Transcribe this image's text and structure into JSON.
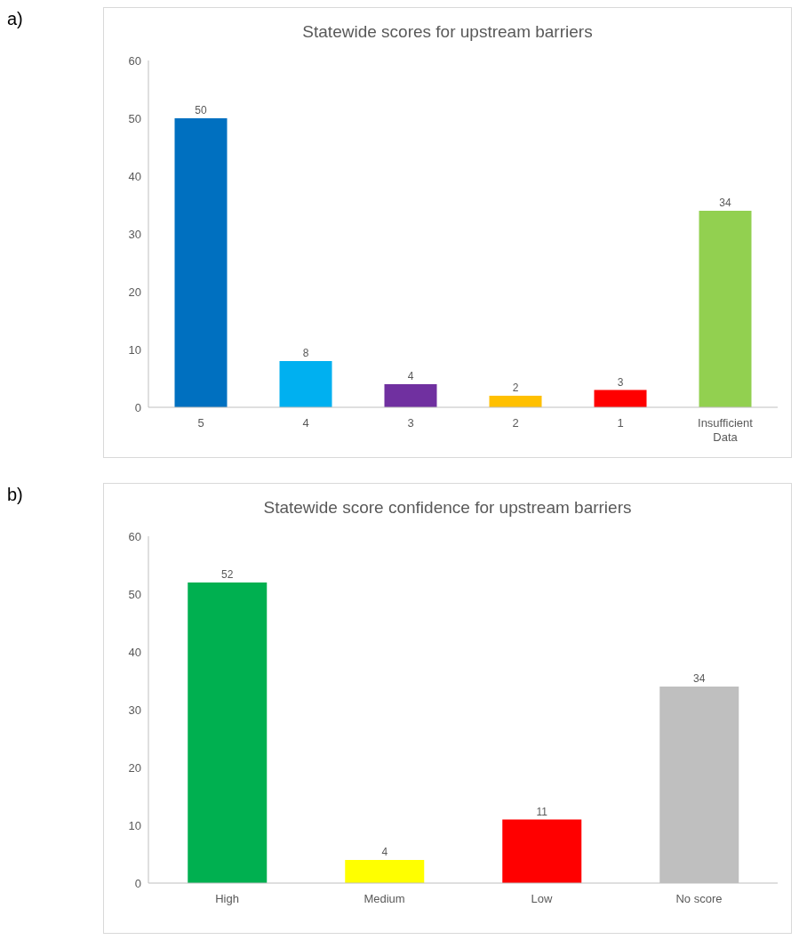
{
  "chart_data": [
    {
      "type": "bar",
      "title": "Statewide scores for upstream barriers",
      "annotations": [
        "a)"
      ],
      "categories": [
        "5",
        "4",
        "3",
        "2",
        "1",
        "Insufficient Data"
      ],
      "values": [
        50,
        8,
        4,
        2,
        3,
        34
      ],
      "colors": [
        "#0070c0",
        "#00b0f0",
        "#7030a0",
        "#ffc000",
        "#ff0000",
        "#92d050"
      ],
      "ylim": [
        0,
        60
      ],
      "yticks": [
        0,
        10,
        20,
        30,
        40,
        50,
        60
      ],
      "grid": false,
      "legend": false,
      "data_labels": true
    },
    {
      "type": "bar",
      "title": "Statewide score confidence for upstream barriers",
      "annotations": [
        "b)"
      ],
      "categories": [
        "High",
        "Medium",
        "Low",
        "No score"
      ],
      "values": [
        52,
        4,
        11,
        34
      ],
      "colors": [
        "#00b050",
        "#ffff00",
        "#ff0000",
        "#bfbfbf"
      ],
      "ylim": [
        0,
        60
      ],
      "yticks": [
        0,
        10,
        20,
        30,
        40,
        50,
        60
      ],
      "grid": false,
      "legend": false,
      "data_labels": true
    }
  ]
}
